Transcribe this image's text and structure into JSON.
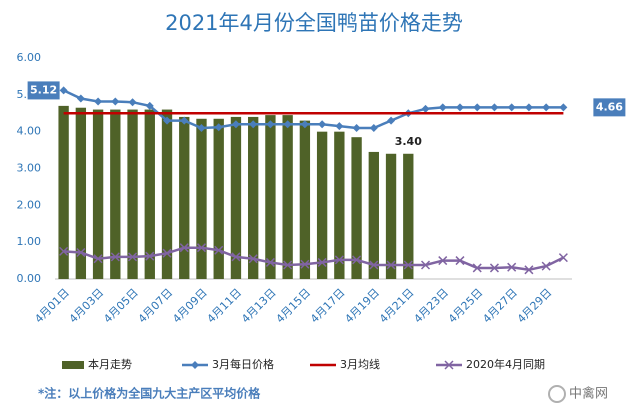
{
  "chart_data": {
    "type": "bar",
    "title": "2021年4月份全国鸭苗价格走势",
    "categories": [
      "4月01日",
      null,
      "4月03日",
      null,
      "4月05日",
      null,
      "4月07日",
      null,
      "4月09日",
      null,
      "4月11日",
      null,
      "4月13日",
      null,
      "4月15日",
      null,
      "4月17日",
      null,
      "4月19日",
      null,
      "4月21日",
      null,
      "4月23日",
      null,
      "4月25日",
      null,
      "4月27日",
      null,
      "4月29日",
      null
    ],
    "ylim": [
      0,
      6
    ],
    "yticks": [
      {
        "value": 0,
        "label": "0.00"
      },
      {
        "value": 1,
        "label": "1.00"
      },
      {
        "value": 2,
        "label": "2.00"
      },
      {
        "value": 3,
        "label": "3.00"
      },
      {
        "value": 4,
        "label": "4.00"
      },
      {
        "value": 5,
        "label": "5.00"
      },
      {
        "value": 6,
        "label": "6.00"
      }
    ],
    "grid": false,
    "series": [
      {
        "name": "本月走势",
        "type": "bar",
        "color": "#4f6228",
        "values": [
          4.7,
          4.65,
          4.6,
          4.6,
          4.6,
          4.6,
          4.6,
          4.4,
          4.35,
          4.35,
          4.4,
          4.4,
          4.45,
          4.45,
          4.3,
          4.0,
          4.0,
          3.85,
          3.45,
          3.4,
          3.4,
          null,
          null,
          null,
          null,
          null,
          null,
          null,
          null,
          null
        ],
        "value_labels": [
          null,
          null,
          null,
          null,
          null,
          null,
          null,
          null,
          null,
          null,
          null,
          null,
          null,
          null,
          null,
          null,
          null,
          null,
          null,
          null,
          "3.40",
          null,
          null,
          null,
          null,
          null,
          null,
          null,
          null,
          null
        ]
      },
      {
        "name": "3月每日价格",
        "type": "line",
        "marker": "diamond",
        "color": "#4a7ebb",
        "values": [
          5.12,
          4.9,
          4.82,
          4.82,
          4.8,
          4.7,
          4.3,
          4.3,
          4.1,
          4.12,
          4.2,
          4.2,
          4.2,
          4.2,
          4.2,
          4.2,
          4.15,
          4.1,
          4.1,
          4.3,
          4.5,
          4.62,
          4.66,
          4.66,
          4.66,
          4.66,
          4.66,
          4.66,
          4.66,
          4.66
        ],
        "value_labels": [
          "5.12",
          null,
          null,
          null,
          null,
          null,
          null,
          null,
          null,
          null,
          null,
          null,
          null,
          null,
          null,
          null,
          null,
          null,
          null,
          null,
          null,
          null,
          null,
          null,
          null,
          null,
          null,
          null,
          null,
          "4.66"
        ]
      },
      {
        "name": "3月均线",
        "type": "line",
        "marker": "none",
        "color": "#c00000",
        "values": [
          4.5,
          4.5,
          4.5,
          4.5,
          4.5,
          4.5,
          4.5,
          4.5,
          4.5,
          4.5,
          4.5,
          4.5,
          4.5,
          4.5,
          4.5,
          4.5,
          4.5,
          4.5,
          4.5,
          4.5,
          4.5,
          4.5,
          4.5,
          4.5,
          4.5,
          4.5,
          4.5,
          4.5,
          4.5,
          4.5
        ]
      },
      {
        "name": "2020年4月同期",
        "type": "line",
        "marker": "x",
        "color": "#8064a2",
        "values": [
          0.75,
          0.72,
          0.55,
          0.6,
          0.6,
          0.62,
          0.7,
          0.85,
          0.85,
          0.78,
          0.6,
          0.55,
          0.45,
          0.38,
          0.4,
          0.45,
          0.52,
          0.52,
          0.38,
          0.38,
          0.38,
          0.38,
          0.5,
          0.5,
          0.3,
          0.3,
          0.32,
          0.25,
          0.35,
          0.58
        ]
      }
    ],
    "footnote": "*注：以上价格为全国九大主产区平均价格",
    "source": "中禽网"
  }
}
